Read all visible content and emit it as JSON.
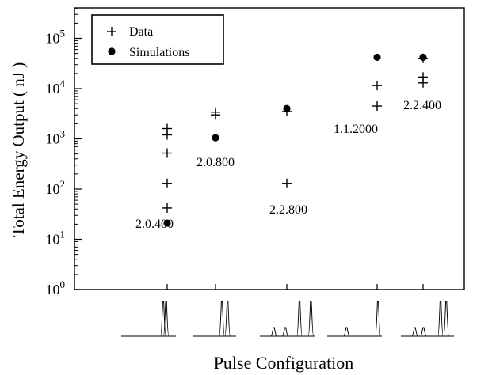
{
  "chart_data": {
    "type": "scatter",
    "title": "",
    "xlabel": "Pulse Configuration",
    "ylabel": "Total Energy Output ( nJ )",
    "yscale": "log",
    "ylim": [
      1,
      500000
    ],
    "y_ticks": [
      {
        "value": 1,
        "base": "10",
        "exp": "0"
      },
      {
        "value": 10,
        "base": "10",
        "exp": "1"
      },
      {
        "value": 100,
        "base": "10",
        "exp": "2"
      },
      {
        "value": 1000,
        "base": "10",
        "exp": "3"
      },
      {
        "value": 10000,
        "base": "10",
        "exp": "4"
      },
      {
        "value": 100000,
        "base": "10",
        "exp": "5"
      }
    ],
    "categories": [
      "2.0.400",
      "2.0.800",
      "2.2.800",
      "1.1.2000",
      "2.2.400"
    ],
    "legend": {
      "placement": "top-left",
      "entries": [
        {
          "label": "Data",
          "marker": "plus"
        },
        {
          "label": "Simulations",
          "marker": "dot"
        }
      ]
    },
    "series": [
      {
        "name": "Data",
        "marker": "plus",
        "points": [
          {
            "category": "2.0.400",
            "values": [
              1600,
              1200,
              520,
              130,
              42
            ]
          },
          {
            "category": "2.0.800",
            "values": [
              3400,
              3000
            ]
          },
          {
            "category": "2.2.800",
            "values": [
              3500,
              130
            ]
          },
          {
            "category": "1.1.2000",
            "values": [
              11500,
              4500
            ]
          },
          {
            "category": "2.2.400",
            "values": [
              40000,
              17000,
              13000
            ]
          }
        ]
      },
      {
        "name": "Simulations",
        "marker": "dot",
        "points": [
          {
            "category": "2.0.400",
            "values": [
              21
            ]
          },
          {
            "category": "2.0.800",
            "values": [
              1050
            ]
          },
          {
            "category": "2.2.800",
            "values": [
              4000
            ]
          },
          {
            "category": "1.1.2000",
            "values": [
              42000
            ]
          },
          {
            "category": "2.2.400",
            "values": [
              42000
            ]
          }
        ]
      }
    ],
    "pulse_configurations": [
      {
        "category": "2.0.400",
        "pulses": [
          {
            "amplitude": 1.0,
            "offset": 0
          },
          {
            "amplitude": 1.0,
            "offset": 1
          }
        ]
      },
      {
        "category": "2.0.800",
        "pulses": [
          {
            "amplitude": 1.0,
            "offset": 0
          },
          {
            "amplitude": 1.0,
            "offset": 2
          }
        ]
      },
      {
        "category": "2.2.800",
        "pulses": [
          {
            "amplitude": 0.25,
            "offset": -9
          },
          {
            "amplitude": 0.25,
            "offset": -5
          },
          {
            "amplitude": 1.0,
            "offset": 0
          },
          {
            "amplitude": 1.0,
            "offset": 4
          }
        ]
      },
      {
        "category": "1.1.2000",
        "pulses": [
          {
            "amplitude": 0.25,
            "offset": -11
          },
          {
            "amplitude": 1.0,
            "offset": 0
          }
        ]
      },
      {
        "category": "2.2.400",
        "pulses": [
          {
            "amplitude": 0.25,
            "offset": -9
          },
          {
            "amplitude": 0.25,
            "offset": -6
          },
          {
            "amplitude": 1.0,
            "offset": 0
          },
          {
            "amplitude": 1.0,
            "offset": 2
          }
        ]
      }
    ],
    "grid": false
  }
}
